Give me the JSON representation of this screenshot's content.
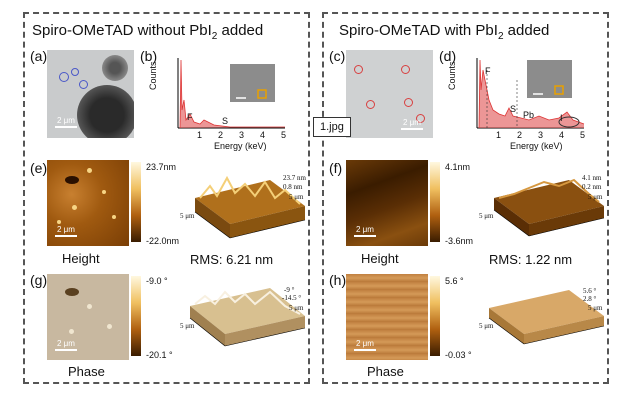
{
  "left": {
    "title": "Spiro-OMeTAD without PbI",
    "title_sub": "2",
    "title_end": " added",
    "labels": {
      "a": "(a)",
      "b": "(b)",
      "e": "(e)",
      "g": "(g)"
    },
    "tem_scale": "2 μm",
    "eds": {
      "ylabel": "Counts",
      "xlabel": "Energy (keV)",
      "peaks": [
        "F",
        "S"
      ],
      "ticks": [
        "1",
        "2",
        "3",
        "4",
        "5"
      ],
      "inset_scale": "—"
    },
    "height": {
      "cmax": "23.7nm",
      "cmin": "-22.0nm",
      "scale": "2 μm",
      "caption": "Height",
      "rms": "RMS: 6.21 nm",
      "z1": "23.7 nm",
      "z2": "0.8 nm",
      "xy": "5 μm"
    },
    "phase": {
      "cmax": "-9.0 °",
      "cmin": "-20.1 °",
      "scale": "2 μm",
      "caption": "Phase",
      "z1": "-9 °",
      "z2": "-14.5 °",
      "xy": "5 μm"
    }
  },
  "right": {
    "title": "Spiro-OMeTAD with PbI",
    "title_sub": "2",
    "title_end": " added",
    "labels": {
      "c": "(c)",
      "d": "(d)",
      "f": "(f)",
      "h": "(h)"
    },
    "tem_scale": "2 μm",
    "jpg": "1.jpg",
    "eds": {
      "ylabel": "Counts",
      "xlabel": "Energy (keV)",
      "peaks": [
        "F",
        "S",
        "Pb",
        "I"
      ],
      "ticks": [
        "1",
        "2",
        "3",
        "4",
        "5"
      ]
    },
    "height": {
      "cmax": "4.1nm",
      "cmin": "-3.6nm",
      "scale": "2 μm",
      "caption": "Height",
      "rms": "RMS: 1.22 nm",
      "z1": "4.1 nm",
      "z2": "0.2 nm",
      "xy": "5 μm"
    },
    "phase": {
      "cmax": "5.6 °",
      "cmin": "-0.03 °",
      "scale": "2 μm",
      "caption": "Phase",
      "z1": "5.6 °",
      "z2": "2.8 °",
      "xy": "5 μm"
    }
  },
  "axis_ticks_3d": [
    "1",
    "2",
    "3",
    "4",
    "5"
  ],
  "colors": {
    "afm_dark": "#3a1c00",
    "afm_mid": "#b06a10",
    "afm_light": "#f5d07a",
    "eds": "#e05050"
  }
}
